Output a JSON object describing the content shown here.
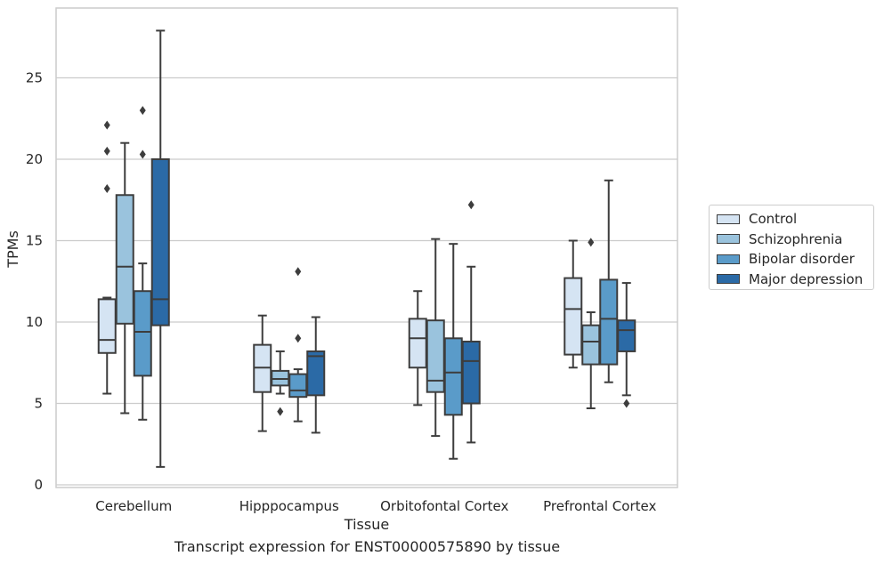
{
  "chart_data": {
    "type": "box",
    "title": "",
    "xlabel": "Tissue",
    "ylabel": "TPMs",
    "caption": "Transcript expression for ENST00000575890 by tissue",
    "categories": [
      "Cerebellum",
      "Hipppocampus",
      "Orbitofontal Cortex",
      "Prefrontal Cortex"
    ],
    "ylim": [
      0,
      28
    ],
    "yticks": [
      0,
      5,
      10,
      15,
      20,
      25
    ],
    "grid": "horizontal",
    "legend_position": "right",
    "series": [
      {
        "name": "Control",
        "color": "#d5e4f3",
        "boxes": [
          {
            "whislo": 5.6,
            "q1": 8.1,
            "med": 8.9,
            "q3": 11.4,
            "whishi": 11.5,
            "fliers": [
              18.2,
              20.5,
              22.1
            ]
          },
          {
            "whislo": 3.3,
            "q1": 5.7,
            "med": 7.2,
            "q3": 8.6,
            "whishi": 10.4,
            "fliers": []
          },
          {
            "whislo": 4.9,
            "q1": 7.2,
            "med": 9.0,
            "q3": 10.2,
            "whishi": 11.9,
            "fliers": []
          },
          {
            "whislo": 7.2,
            "q1": 8.0,
            "med": 10.8,
            "q3": 12.7,
            "whishi": 15.0,
            "fliers": []
          }
        ]
      },
      {
        "name": "Schizophrenia",
        "color": "#9ac3dd",
        "boxes": [
          {
            "whislo": 4.4,
            "q1": 9.9,
            "med": 13.4,
            "q3": 17.8,
            "whishi": 21.0,
            "fliers": []
          },
          {
            "whislo": 5.6,
            "q1": 6.1,
            "med": 6.5,
            "q3": 7.0,
            "whishi": 8.2,
            "fliers": [
              4.5
            ]
          },
          {
            "whislo": 3.0,
            "q1": 5.7,
            "med": 6.4,
            "q3": 10.1,
            "whishi": 15.1,
            "fliers": []
          },
          {
            "whislo": 4.7,
            "q1": 7.4,
            "med": 8.8,
            "q3": 9.8,
            "whishi": 10.6,
            "fliers": [
              14.9
            ]
          }
        ]
      },
      {
        "name": "Bipolar disorder",
        "color": "#5a9bc9",
        "boxes": [
          {
            "whislo": 4.0,
            "q1": 6.7,
            "med": 9.4,
            "q3": 11.9,
            "whishi": 13.6,
            "fliers": [
              20.3,
              23.0
            ]
          },
          {
            "whislo": 3.9,
            "q1": 5.4,
            "med": 5.8,
            "q3": 6.8,
            "whishi": 7.1,
            "fliers": [
              9.0,
              13.1
            ]
          },
          {
            "whislo": 1.6,
            "q1": 4.3,
            "med": 6.9,
            "q3": 9.0,
            "whishi": 14.8,
            "fliers": []
          },
          {
            "whislo": 6.3,
            "q1": 7.4,
            "med": 10.2,
            "q3": 12.6,
            "whishi": 18.7,
            "fliers": []
          }
        ]
      },
      {
        "name": "Major depression",
        "color": "#2b6aa6",
        "boxes": [
          {
            "whislo": 1.1,
            "q1": 9.8,
            "med": 11.4,
            "q3": 20.0,
            "whishi": 27.9,
            "fliers": []
          },
          {
            "whislo": 3.2,
            "q1": 5.5,
            "med": 7.9,
            "q3": 8.2,
            "whishi": 10.3,
            "fliers": []
          },
          {
            "whislo": 2.6,
            "q1": 5.0,
            "med": 7.6,
            "q3": 8.8,
            "whishi": 13.4,
            "fliers": [
              17.2
            ]
          },
          {
            "whislo": 5.5,
            "q1": 8.2,
            "med": 9.5,
            "q3": 10.1,
            "whishi": 12.4,
            "fliers": [
              5.0
            ]
          }
        ]
      }
    ]
  }
}
